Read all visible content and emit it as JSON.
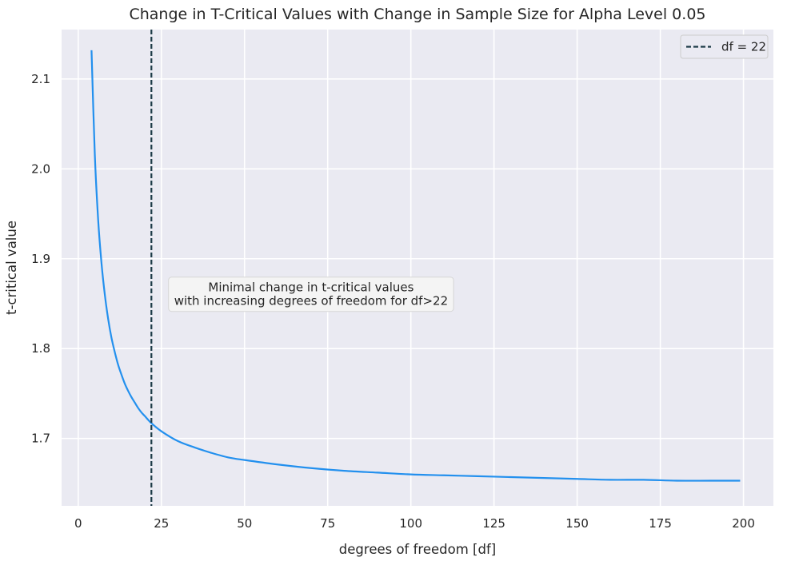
{
  "chart_data": {
    "type": "line",
    "title": "Change in T-Critical Values with Change in Sample Size for Alpha Level 0.05",
    "xlabel": "degrees of freedom [df]",
    "ylabel": "t-critical value",
    "xlim": [
      -5,
      209
    ],
    "ylim": [
      1.625,
      2.155
    ],
    "x_ticks": [
      0,
      25,
      50,
      75,
      100,
      125,
      150,
      175,
      200
    ],
    "x_tick_labels": [
      "0",
      "25",
      "50",
      "75",
      "100",
      "125",
      "150",
      "175",
      "200"
    ],
    "y_ticks": [
      1.7,
      1.8,
      1.9,
      2.0,
      2.1
    ],
    "y_tick_labels": [
      "1.7",
      "1.8",
      "1.9",
      "2.0",
      "2.1"
    ],
    "grid": true,
    "legend_position": "top-right",
    "series": [
      {
        "color": "#2390ee",
        "x": [
          4,
          5,
          6,
          7,
          8,
          9,
          10,
          11,
          12,
          13,
          14,
          15,
          16,
          17,
          18,
          19,
          20,
          22,
          25,
          30,
          35,
          40,
          45,
          50,
          60,
          70,
          80,
          90,
          100,
          110,
          120,
          130,
          140,
          150,
          160,
          170,
          180,
          190,
          199
        ],
        "y": [
          2.132,
          2.015,
          1.943,
          1.895,
          1.86,
          1.833,
          1.812,
          1.796,
          1.782,
          1.771,
          1.761,
          1.753,
          1.746,
          1.74,
          1.734,
          1.729,
          1.725,
          1.717,
          1.708,
          1.697,
          1.69,
          1.684,
          1.679,
          1.676,
          1.671,
          1.667,
          1.664,
          1.662,
          1.66,
          1.659,
          1.658,
          1.657,
          1.656,
          1.655,
          1.654,
          1.654,
          1.653,
          1.653,
          1.653
        ]
      }
    ],
    "vline": {
      "x": 22,
      "label": "df = 22",
      "color": "#1c3a47",
      "style": "dashed"
    },
    "annotation": {
      "lines": [
        "Minimal change in t-critical values",
        "with increasing degrees of freedom for df>22"
      ],
      "x": 70,
      "y": 1.86
    },
    "colors": {
      "plot_background": "#eaeaf2",
      "grid": "#ffffff",
      "text": "#262626",
      "annotation_box": "#f4f4f4",
      "legend_box": "#eaeaf2"
    }
  }
}
